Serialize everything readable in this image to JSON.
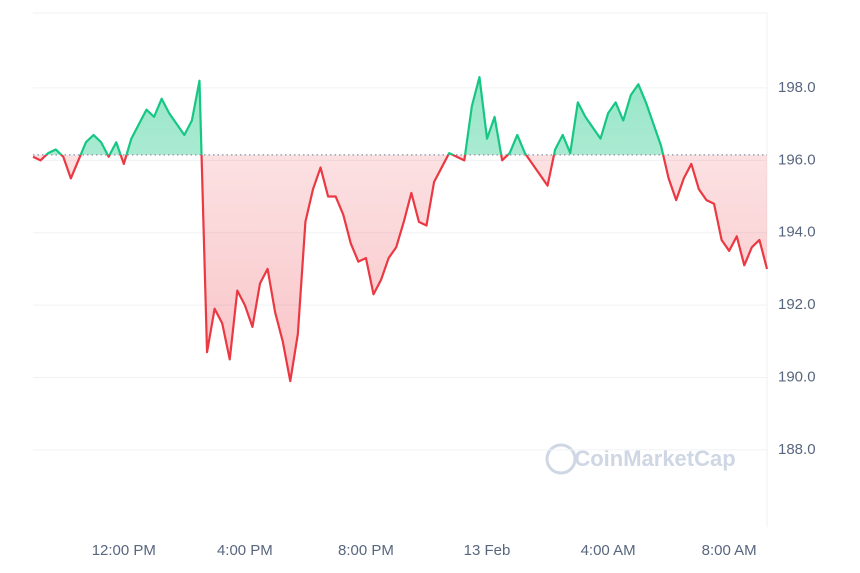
{
  "chart_data": {
    "type": "line",
    "watermark": "CoinMarketCap",
    "categories": [
      null,
      null,
      null,
      null,
      null,
      null,
      null,
      null,
      null,
      null,
      null,
      null,
      "12:00 PM",
      null,
      null,
      null,
      null,
      null,
      null,
      null,
      null,
      null,
      null,
      null,
      null,
      null,
      null,
      null,
      "4:00 PM",
      null,
      null,
      null,
      null,
      null,
      null,
      null,
      null,
      null,
      null,
      null,
      null,
      null,
      null,
      null,
      "8:00 PM",
      null,
      null,
      null,
      null,
      null,
      null,
      null,
      null,
      null,
      null,
      null,
      null,
      null,
      null,
      null,
      "13 Feb",
      null,
      null,
      null,
      null,
      null,
      null,
      null,
      null,
      null,
      null,
      null,
      null,
      null,
      null,
      null,
      "4:00 AM",
      null,
      null,
      null,
      null,
      null,
      null,
      null,
      null,
      null,
      null,
      null,
      null,
      null,
      null,
      null,
      "8:00 AM",
      null,
      null,
      null,
      null,
      null
    ],
    "series": [
      {
        "name": "Price",
        "color": "#16c784",
        "down_color": "#ea3943",
        "values": [
          196.1,
          196.0,
          196.2,
          196.3,
          196.1,
          195.5,
          196.0,
          196.5,
          196.7,
          196.5,
          196.1,
          196.5,
          195.9,
          196.6,
          197.0,
          197.4,
          197.2,
          197.7,
          197.3,
          197.0,
          196.7,
          197.1,
          198.2,
          190.7,
          191.9,
          191.5,
          190.5,
          192.4,
          192.0,
          191.4,
          192.6,
          193.0,
          191.8,
          191.0,
          189.9,
          191.2,
          194.3,
          195.2,
          195.8,
          195.0,
          195.0,
          194.5,
          193.7,
          193.2,
          193.3,
          192.3,
          192.7,
          193.3,
          193.6,
          194.3,
          195.1,
          194.3,
          194.2,
          195.4,
          195.8,
          196.2,
          196.1,
          196.0,
          197.5,
          198.3,
          196.6,
          197.2,
          196.0,
          196.2,
          196.7,
          196.2,
          195.9,
          195.6,
          195.3,
          196.3,
          196.7,
          196.2,
          197.6,
          197.2,
          196.9,
          196.6,
          197.3,
          197.6,
          197.1,
          197.8,
          198.1,
          197.6,
          197.0,
          196.4,
          195.5,
          194.9,
          195.5,
          195.9,
          195.2,
          194.9,
          194.8,
          193.8,
          193.5,
          193.9,
          193.1,
          193.6,
          193.8,
          193.0
        ]
      }
    ],
    "baseline": 196.15,
    "ylim": [
      185.87,
      200.07
    ],
    "yticks": [
      {
        "value": 188,
        "label": "188.0"
      },
      {
        "value": 190,
        "label": "190.0"
      },
      {
        "value": 192,
        "label": "192.0"
      },
      {
        "value": 194,
        "label": "194.0"
      },
      {
        "value": 196,
        "label": "196.0"
      },
      {
        "value": 198,
        "label": "198.0"
      }
    ],
    "grid": true
  }
}
